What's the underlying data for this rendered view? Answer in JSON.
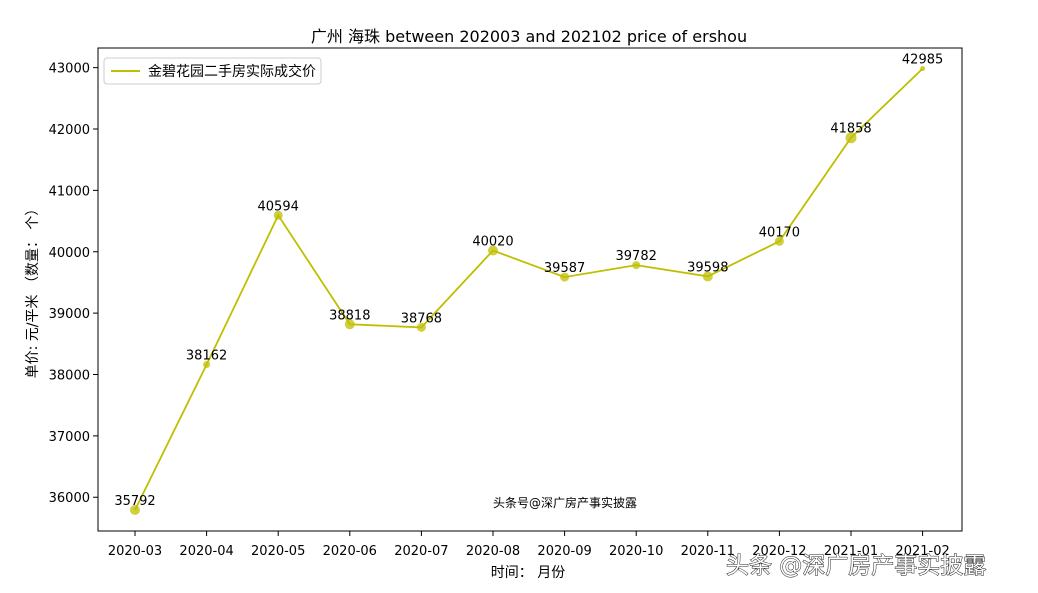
{
  "chart_data": {
    "type": "line",
    "title": "广州 海珠 between 202003 and 202102 price of ershou",
    "xlabel": "时间： 月份",
    "ylabel": "单价: 元/平米      （数量： 个）",
    "categories": [
      "2020-03",
      "2020-04",
      "2020-05",
      "2020-06",
      "2020-07",
      "2020-08",
      "2020-09",
      "2020-10",
      "2020-11",
      "2020-12",
      "2021-01",
      "2021-02"
    ],
    "series": [
      {
        "name": "金碧花园二手房实际成交价",
        "values": [
          35792,
          38162,
          40594,
          38818,
          38768,
          40020,
          39587,
          39782,
          39598,
          40170,
          41858,
          42985
        ],
        "marker_sizes": [
          10,
          7,
          9,
          10,
          9,
          10,
          9,
          8,
          10,
          9,
          11,
          5
        ],
        "color": "#bfbf00"
      }
    ],
    "yticks": [
      36000,
      37000,
      38000,
      39000,
      40000,
      41000,
      42000,
      43000
    ],
    "ylim": [
      35450,
      43320
    ],
    "legend_position": "top-left",
    "grid": false,
    "annotation": "头条号@深广房产事实披露"
  },
  "watermark": "头条 @深广房产事实披露"
}
